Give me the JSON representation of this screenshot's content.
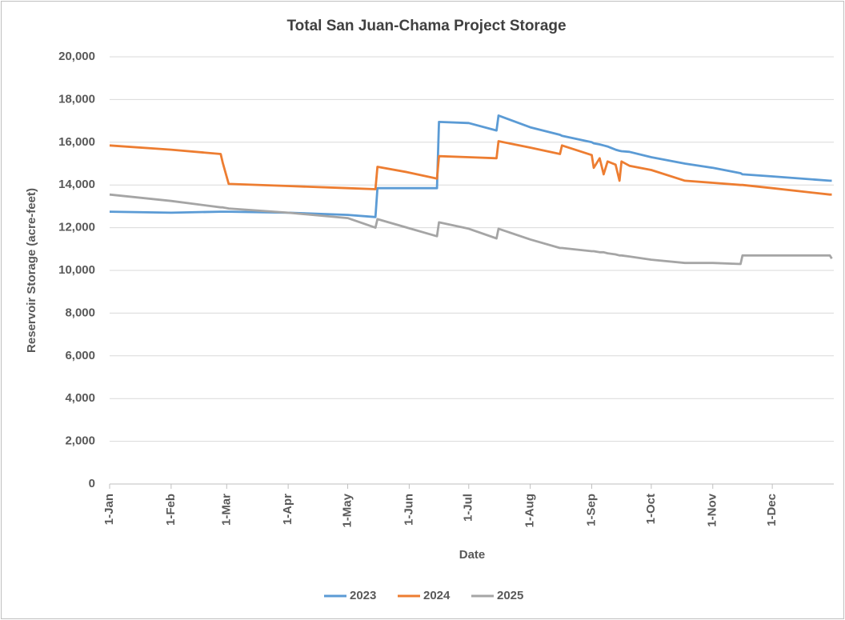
{
  "chart_data": {
    "type": "line",
    "title": "Total San Juan-Chama Project Storage",
    "x_label": "Date",
    "y_label": "Reservoir Storage (acre-feet)",
    "x": [
      0,
      31,
      56,
      57,
      60,
      90,
      120,
      134,
      135,
      150,
      165,
      166,
      181,
      195,
      196,
      212,
      227,
      228,
      243,
      244,
      247,
      249,
      251,
      255,
      257,
      258,
      262,
      273,
      290,
      304,
      318,
      319,
      334,
      363,
      364
    ],
    "series": [
      {
        "name": "2023",
        "color": "#5b9bd5",
        "values": [
          12750,
          12700,
          12750,
          12750,
          12750,
          12700,
          12600,
          12500,
          13850,
          13850,
          13850,
          16950,
          16900,
          16550,
          17250,
          16700,
          16350,
          16300,
          16000,
          15950,
          15900,
          15850,
          15800,
          15650,
          15600,
          15580,
          15550,
          15300,
          15000,
          14800,
          14550,
          14500,
          14400,
          14200,
          14200
        ]
      },
      {
        "name": "2024",
        "color": "#ed7d31",
        "values": [
          15850,
          15650,
          15450,
          15050,
          14050,
          13950,
          13850,
          13800,
          14850,
          14600,
          14300,
          15350,
          15300,
          15250,
          16050,
          15750,
          15450,
          15850,
          15400,
          14800,
          15250,
          14500,
          15100,
          14950,
          14200,
          15100,
          14900,
          14700,
          14200,
          14100,
          14000,
          14000,
          13850,
          13550,
          13550
        ]
      },
      {
        "name": "2025",
        "color": "#a5a5a5",
        "values": [
          13550,
          13250,
          12950,
          12950,
          12900,
          12700,
          12450,
          12000,
          12400,
          12000,
          11600,
          12250,
          11950,
          11500,
          11950,
          11450,
          11050,
          11050,
          10900,
          10900,
          10850,
          10850,
          10800,
          10750,
          10700,
          10700,
          10650,
          10500,
          10350,
          10350,
          10300,
          10700,
          10700,
          10700,
          10550
        ]
      }
    ],
    "xlim": [
      0,
      365
    ],
    "xticks": [
      {
        "value": 0,
        "label": "1-Jan"
      },
      {
        "value": 31,
        "label": "1-Feb"
      },
      {
        "value": 59,
        "label": "1-Mar"
      },
      {
        "value": 90,
        "label": "1-Apr"
      },
      {
        "value": 120,
        "label": "1-May"
      },
      {
        "value": 151,
        "label": "1-Jun"
      },
      {
        "value": 181,
        "label": "1-Jul"
      },
      {
        "value": 212,
        "label": "1-Aug"
      },
      {
        "value": 243,
        "label": "1-Sep"
      },
      {
        "value": 273,
        "label": "1-Oct"
      },
      {
        "value": 304,
        "label": "1-Nov"
      },
      {
        "value": 334,
        "label": "1-Dec"
      }
    ],
    "ylim": [
      0,
      20000
    ],
    "yticks": [
      0,
      {
        "value": 2000,
        "label": "2,000"
      },
      {
        "value": 4000,
        "label": "4,000"
      },
      {
        "value": 6000,
        "label": "6,000"
      },
      {
        "value": 8000,
        "label": "8,000"
      },
      {
        "value": 10000,
        "label": "10,000"
      },
      {
        "value": 12000,
        "label": "12,000"
      },
      {
        "value": 14000,
        "label": "14,000"
      },
      {
        "value": 16000,
        "label": "16,000"
      },
      {
        "value": 18000,
        "label": "18,000"
      },
      {
        "value": 20000,
        "label": "20,000"
      }
    ],
    "grid": true,
    "legend": "bottom"
  }
}
